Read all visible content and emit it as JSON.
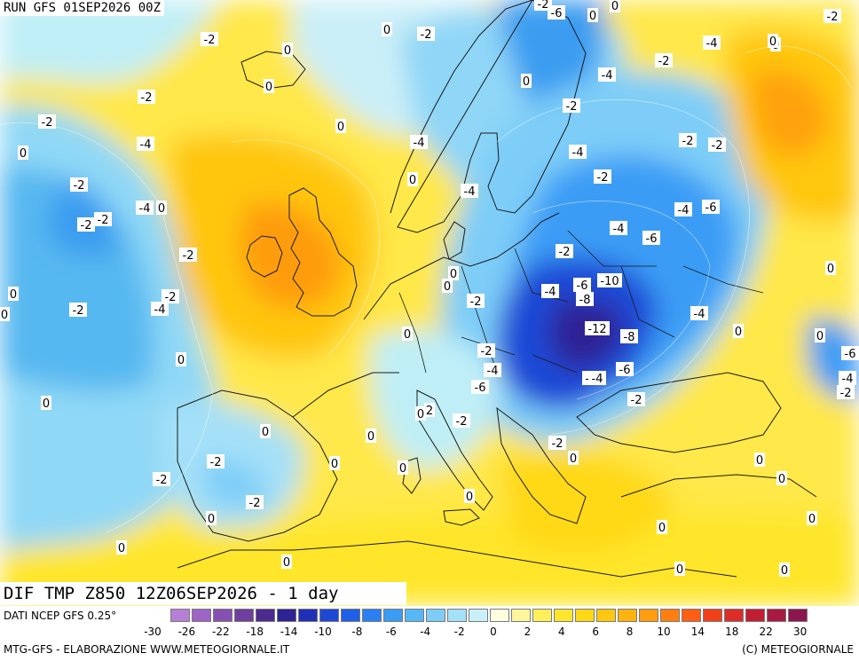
{
  "header": {
    "run": "RUN GFS 01SEP2026 00Z"
  },
  "title": "DIF TMP Z850 12Z06SEP2026 - 1 day",
  "legend": {
    "source": "DATI NCEP GFS 0.25°",
    "colors": [
      "#b57fd6",
      "#9d64c4",
      "#8650b2",
      "#6e3f9e",
      "#4d2a8f",
      "#2e2394",
      "#1f2fb8",
      "#1f48d6",
      "#2060e8",
      "#2a7ff2",
      "#3b9cf5",
      "#56b7f7",
      "#7dcdf8",
      "#a4e0f8",
      "#cbeff8",
      "#ffffe0",
      "#fff59c",
      "#fff05a",
      "#ffe62c",
      "#ffd815",
      "#ffc70f",
      "#ffb30e",
      "#ff9c0f",
      "#ff7e10",
      "#ff5e14",
      "#f2401a",
      "#dc2d26",
      "#c21e33",
      "#a81a42",
      "#8e164e"
    ],
    "ticks": [
      "-30",
      "-26",
      "-22",
      "-18",
      "-14",
      "-10",
      "-8",
      "-6",
      "-4",
      "-2",
      "0",
      "2",
      "4",
      "6",
      "8",
      "10",
      "14",
      "18",
      "22",
      "30"
    ]
  },
  "footer": {
    "left": "MTG-GFS - ELABORAZIONE WWW.METEOGIORNALE.IT",
    "right": "(C) METEOGIORNALE"
  },
  "map_labels": [
    "-2",
    "-6",
    "0",
    "0",
    "-2",
    "0",
    "-2",
    "0",
    "0",
    "-2",
    "0",
    "-4",
    "-2",
    "-4",
    "0",
    "0",
    "-2",
    "-2",
    "-2",
    "0",
    "-4",
    "-2",
    "-2",
    "-4",
    "-4",
    "0",
    "-2",
    "-2",
    "-4",
    "0",
    "-2",
    "-2",
    "-4",
    "-4",
    "-6",
    "-2",
    "-4",
    "-6",
    "0",
    "0",
    "-2",
    "-4",
    "-6",
    "-10",
    "-2",
    "-4",
    "-8",
    "-4",
    "0",
    "0",
    "0",
    "0",
    "-12",
    "-8",
    "-2",
    "-2",
    "-6",
    "-4",
    "-6",
    "0",
    "-4",
    "-2",
    "-2",
    "0",
    "-6",
    "-4",
    "0",
    "-2",
    "-4",
    "-2",
    "0",
    "-2",
    "2",
    "0",
    "0",
    "-2",
    "0",
    "0",
    "-2",
    "-2",
    "0",
    "0",
    "0",
    "0",
    "0",
    "0",
    "0",
    "0",
    "0",
    "0",
    "0",
    "0",
    "0"
  ],
  "colors": {
    "background": "#ffffff",
    "coast": "#1a1a1a"
  }
}
